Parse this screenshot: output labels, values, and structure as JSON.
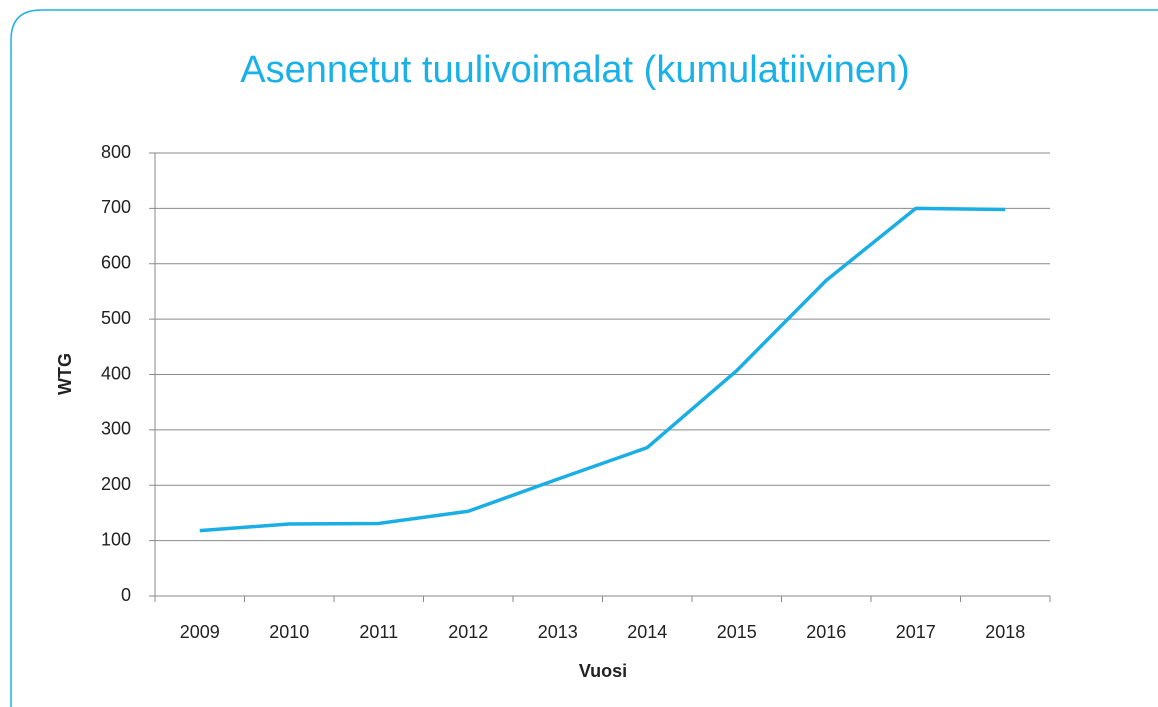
{
  "chart_data": {
    "type": "line",
    "title": "Asennetut tuulivoimalat (kumulatiivinen)",
    "x_label": "Vuosi",
    "y_label": "WTG",
    "categories": [
      "2009",
      "2010",
      "2011",
      "2012",
      "2013",
      "2014",
      "2015",
      "2016",
      "2017",
      "2018"
    ],
    "series": [
      {
        "name": "WTG",
        "color": "#1aaee5",
        "values": [
          118,
          130,
          131,
          153,
          211,
          268,
          407,
          570,
          700,
          698
        ]
      }
    ],
    "ylim": [
      0,
      800
    ],
    "yticks": [
      0,
      100,
      200,
      300,
      400,
      500,
      600,
      700,
      800
    ],
    "grid": true
  }
}
